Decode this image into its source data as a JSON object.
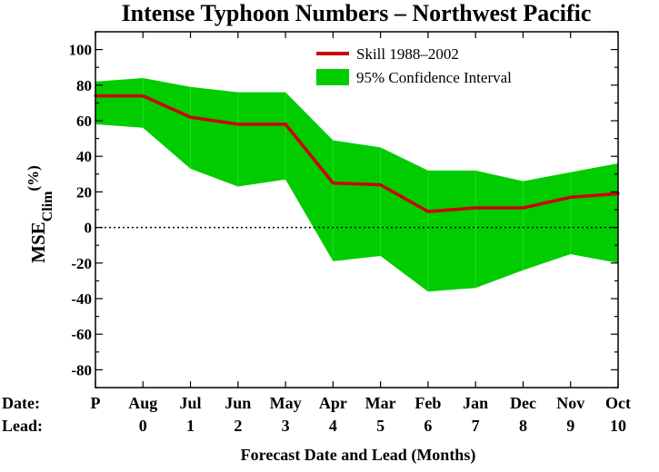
{
  "chart_data": {
    "type": "line",
    "title": "Intense Typhoon Numbers – Northwest Pacific",
    "xlabel": "Forecast Date and Lead (Months)",
    "ylabel": {
      "main": "MSE",
      "subscript": "Clim",
      "unit": "(%)"
    },
    "ylim": [
      -90,
      110
    ],
    "yticks": [
      100,
      80,
      60,
      40,
      20,
      0,
      -20,
      -40,
      -60,
      -80
    ],
    "row_labels": {
      "date": "Date:",
      "lead": "Lead:"
    },
    "categories": [
      {
        "date": "P",
        "lead": ""
      },
      {
        "date": "Aug",
        "lead": "0"
      },
      {
        "date": "Jul",
        "lead": "1"
      },
      {
        "date": "Jun",
        "lead": "2"
      },
      {
        "date": "May",
        "lead": "3"
      },
      {
        "date": "Apr",
        "lead": "4"
      },
      {
        "date": "Mar",
        "lead": "5"
      },
      {
        "date": "Feb",
        "lead": "6"
      },
      {
        "date": "Jan",
        "lead": "7"
      },
      {
        "date": "Dec",
        "lead": "8"
      },
      {
        "date": "Nov",
        "lead": "9"
      },
      {
        "date": "Oct",
        "lead": "10"
      }
    ],
    "series": [
      {
        "name": "Skill 1988–2002",
        "color": "#cc0000",
        "values": [
          74,
          74,
          62,
          58,
          58,
          25,
          24,
          9,
          11,
          11,
          17,
          19
        ]
      }
    ],
    "band": {
      "name": "95% Confidence Interval",
      "color": "#00cc00",
      "upper": [
        82,
        84,
        79,
        76,
        76,
        49,
        45,
        32,
        32,
        26,
        31,
        36
      ],
      "lower": [
        58,
        56,
        33,
        23,
        27,
        -19,
        -16,
        -36,
        -34,
        -24,
        -15,
        -20
      ]
    },
    "zero_line": "dotted",
    "grid": false,
    "legend_position": "top-right"
  }
}
